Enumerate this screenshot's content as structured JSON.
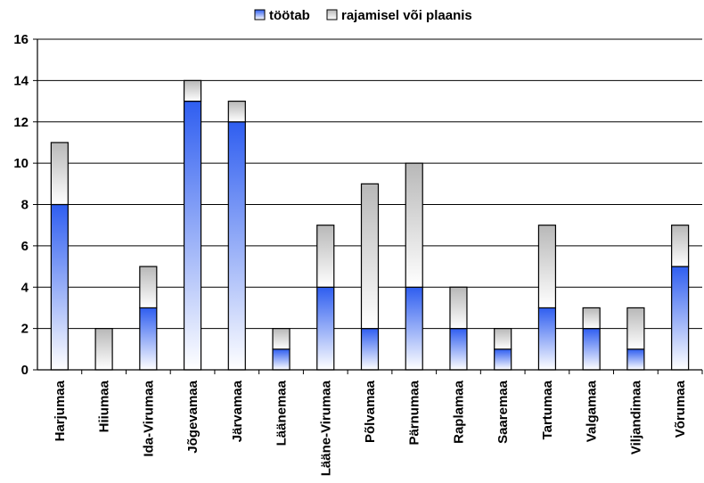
{
  "chart_data": {
    "type": "bar",
    "stacked": true,
    "categories": [
      "Harjumaa",
      "Hiiumaa",
      "Ida-Virumaa",
      "Jõgevamaa",
      "Järvamaa",
      "Läänemaa",
      "Lääne-Virumaa",
      "Põlvamaa",
      "Pärnumaa",
      "Raplamaa",
      "Saaremaa",
      "Tartumaa",
      "Valgamaa",
      "Viljandimaa",
      "Võrumaa"
    ],
    "series": [
      {
        "name": "töötab",
        "values": [
          8,
          0,
          3,
          13,
          12,
          1,
          4,
          2,
          4,
          2,
          1,
          3,
          2,
          1,
          5
        ],
        "color": "#2f5ef0"
      },
      {
        "name": "rajamisel või plaanis",
        "values": [
          3,
          2,
          2,
          1,
          1,
          1,
          3,
          7,
          6,
          2,
          1,
          4,
          1,
          2,
          2
        ],
        "color": "#b8b8b8"
      }
    ],
    "yticks": [
      "0",
      "2",
      "4",
      "6",
      "8",
      "10",
      "12",
      "14",
      "16"
    ],
    "ylim": [
      0,
      16
    ],
    "grid": true,
    "legend_position": "top"
  }
}
